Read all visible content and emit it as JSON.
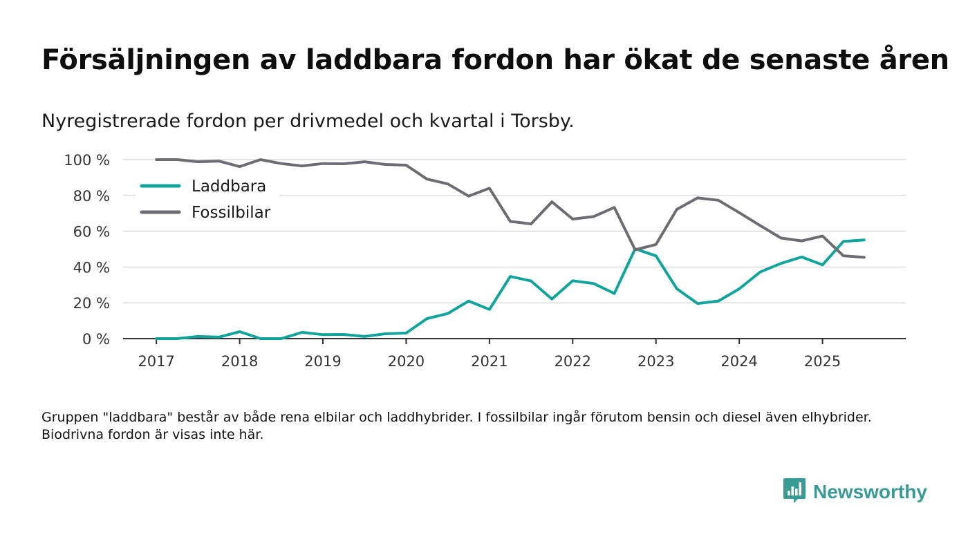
{
  "title": "Försäljningen av laddbara fordon har ökat de senaste åren",
  "subtitle": "Nyregistrerade fordon per drivmedel och kvartal i Torsby.",
  "footnote": "Gruppen \"laddbara\" består av både rena elbilar och laddhybrider. I fossilbilar ingår förutom bensin och diesel även elhybrider. Biodrivna fordon är visas inte här.",
  "brand": {
    "name": "Newsworthy",
    "icon": "newsworthy-logo-icon",
    "color": "#3a9b95"
  },
  "chart_data": {
    "type": "line",
    "title": "Försäljningen av laddbara fordon har ökat de senaste åren",
    "xlabel": "",
    "ylabel": "",
    "ylim": [
      0,
      100
    ],
    "xlim": [
      2016.6,
      2026.0
    ],
    "y_ticks": [
      0,
      20,
      40,
      60,
      80,
      100
    ],
    "y_tick_labels": [
      "0 %",
      "20 %",
      "40 %",
      "60 %",
      "80 %",
      "100 %"
    ],
    "x_ticks": [
      2017,
      2018,
      2019,
      2020,
      2021,
      2022,
      2023,
      2024,
      2025
    ],
    "x_tick_labels": [
      "2017",
      "2018",
      "2019",
      "2020",
      "2021",
      "2022",
      "2023",
      "2024",
      "2025"
    ],
    "grid": true,
    "legend_position": "top-left",
    "x": [
      2017.0,
      2017.25,
      2017.5,
      2017.75,
      2018.0,
      2018.25,
      2018.5,
      2018.75,
      2019.0,
      2019.25,
      2019.5,
      2019.75,
      2020.0,
      2020.25,
      2020.5,
      2020.75,
      2021.0,
      2021.25,
      2021.5,
      2021.75,
      2022.0,
      2022.25,
      2022.5,
      2022.75,
      2023.0,
      2023.25,
      2023.5,
      2023.75,
      2024.0,
      2024.25,
      2024.5,
      2024.75,
      2025.0,
      2025.25,
      2025.5
    ],
    "series": [
      {
        "name": "Laddbara",
        "color": "#12a39a",
        "values": [
          0,
          0,
          1.2,
          0.8,
          3.9,
          0,
          0,
          3.5,
          2.2,
          2.3,
          1.2,
          2.7,
          3.1,
          11.2,
          14.0,
          21.0,
          16.3,
          34.7,
          32.2,
          22.1,
          32.3,
          30.8,
          25.2,
          50.2,
          46.2,
          27.9,
          19.6,
          21.0,
          27.8,
          37.2,
          42.0,
          45.6,
          41.2,
          54.3,
          55.1
        ]
      },
      {
        "name": "Fossilbilar",
        "color": "#6c6c72",
        "values": [
          100,
          100,
          98.8,
          99.2,
          96.1,
          100,
          97.8,
          96.5,
          97.8,
          97.7,
          98.8,
          97.3,
          96.9,
          89.1,
          86.4,
          79.6,
          84.0,
          65.5,
          64.1,
          76.4,
          66.8,
          68.2,
          73.3,
          49.6,
          52.6,
          72.2,
          78.6,
          77.3,
          70.4,
          63.2,
          56.2,
          54.6,
          57.3,
          46.3,
          45.4
        ]
      }
    ]
  }
}
